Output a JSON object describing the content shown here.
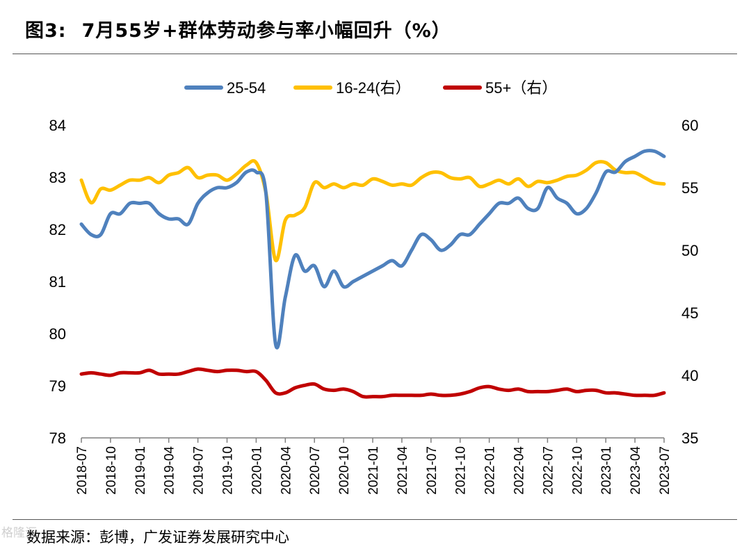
{
  "header": {
    "figure_no": "图3:",
    "title": "7月55岁+群体劳动参与率小幅回升（%）"
  },
  "footer": {
    "source": "数据来源：彭博，广发证券发展研究中心",
    "watermark": "格隆汇"
  },
  "colors": {
    "s1": "#4F81BD",
    "s2": "#FFC000",
    "s3": "#C00000",
    "axis": "#7f7f7f"
  },
  "chart_data": {
    "type": "line",
    "title": "7月55岁+群体劳动参与率小幅回升（%）",
    "x": [
      "2018-07",
      "2018-08",
      "2018-09",
      "2018-10",
      "2018-11",
      "2018-12",
      "2019-01",
      "2019-02",
      "2019-03",
      "2019-04",
      "2019-05",
      "2019-06",
      "2019-07",
      "2019-08",
      "2019-09",
      "2019-10",
      "2019-11",
      "2019-12",
      "2020-01",
      "2020-02",
      "2020-03",
      "2020-04",
      "2020-05",
      "2020-06",
      "2020-07",
      "2020-08",
      "2020-09",
      "2020-10",
      "2020-11",
      "2020-12",
      "2021-01",
      "2021-02",
      "2021-03",
      "2021-04",
      "2021-05",
      "2021-06",
      "2021-07",
      "2021-08",
      "2021-09",
      "2021-10",
      "2021-11",
      "2021-12",
      "2022-01",
      "2022-02",
      "2022-03",
      "2022-04",
      "2022-05",
      "2022-06",
      "2022-07",
      "2022-08",
      "2022-09",
      "2022-10",
      "2022-11",
      "2022-12",
      "2023-01",
      "2023-02",
      "2023-03",
      "2023-04",
      "2023-05",
      "2023-06",
      "2023-07"
    ],
    "x_tick_labels": [
      "2018-07",
      "2018-10",
      "2019-01",
      "2019-04",
      "2019-07",
      "2019-10",
      "2020-01",
      "2020-04",
      "2020-07",
      "2020-10",
      "2021-01",
      "2021-04",
      "2021-07",
      "2021-10",
      "2022-01",
      "2022-04",
      "2022-07",
      "2022-10",
      "2023-01",
      "2023-04",
      "2023-07"
    ],
    "y_left": {
      "ylim": [
        78,
        84
      ],
      "ticks": [
        "78",
        "79",
        "80",
        "81",
        "82",
        "83",
        "84"
      ]
    },
    "y_right": {
      "ylim": [
        35,
        60
      ],
      "ticks": [
        "35",
        "40",
        "45",
        "50",
        "55",
        "60"
      ]
    },
    "legend_position": "top-center",
    "grid": false,
    "series": [
      {
        "name": "25-54",
        "axis": "left",
        "color": "#4F81BD",
        "values": [
          82.1,
          81.9,
          81.9,
          82.3,
          82.3,
          82.5,
          82.5,
          82.5,
          82.3,
          82.2,
          82.2,
          82.1,
          82.5,
          82.7,
          82.8,
          82.8,
          82.9,
          83.1,
          83.1,
          82.7,
          79.8,
          80.7,
          81.5,
          81.2,
          81.3,
          80.9,
          81.2,
          80.9,
          81.0,
          81.1,
          81.2,
          81.3,
          81.4,
          81.3,
          81.6,
          81.9,
          81.8,
          81.6,
          81.7,
          81.9,
          81.9,
          82.1,
          82.3,
          82.5,
          82.5,
          82.6,
          82.4,
          82.4,
          82.8,
          82.6,
          82.5,
          82.3,
          82.4,
          82.7,
          83.1,
          83.1,
          83.3,
          83.4,
          83.5,
          83.5,
          83.4
        ]
      },
      {
        "name": "16-24(右）",
        "axis": "right",
        "color": "#FFC000",
        "values": [
          55.6,
          53.8,
          54.9,
          54.8,
          55.2,
          55.6,
          55.6,
          55.8,
          55.4,
          56.0,
          56.2,
          56.6,
          55.8,
          56.0,
          56.0,
          55.6,
          56.1,
          56.8,
          57.0,
          54.6,
          49.2,
          52.4,
          52.8,
          53.4,
          55.4,
          55.0,
          55.3,
          55.0,
          55.3,
          55.2,
          55.7,
          55.5,
          55.2,
          55.3,
          55.2,
          55.8,
          56.2,
          56.2,
          55.8,
          55.7,
          55.8,
          55.1,
          55.3,
          55.6,
          55.3,
          55.7,
          55.1,
          55.5,
          55.4,
          55.6,
          55.9,
          56.0,
          56.4,
          57.0,
          57.0,
          56.4,
          56.2,
          56.2,
          55.8,
          55.4,
          55.3
        ]
      },
      {
        "name": "55+（右）",
        "axis": "right",
        "color": "#C00000",
        "values": [
          40.1,
          40.2,
          40.1,
          40.0,
          40.2,
          40.2,
          40.2,
          40.4,
          40.1,
          40.1,
          40.1,
          40.3,
          40.5,
          40.4,
          40.3,
          40.4,
          40.4,
          40.3,
          40.3,
          39.6,
          38.6,
          38.6,
          39.0,
          39.2,
          39.3,
          38.9,
          38.8,
          38.9,
          38.7,
          38.3,
          38.3,
          38.3,
          38.4,
          38.4,
          38.4,
          38.4,
          38.5,
          38.4,
          38.4,
          38.5,
          38.7,
          39.0,
          39.1,
          38.9,
          38.8,
          38.9,
          38.7,
          38.7,
          38.7,
          38.8,
          38.9,
          38.7,
          38.8,
          38.8,
          38.6,
          38.6,
          38.5,
          38.4,
          38.4,
          38.4,
          38.6
        ]
      }
    ]
  }
}
